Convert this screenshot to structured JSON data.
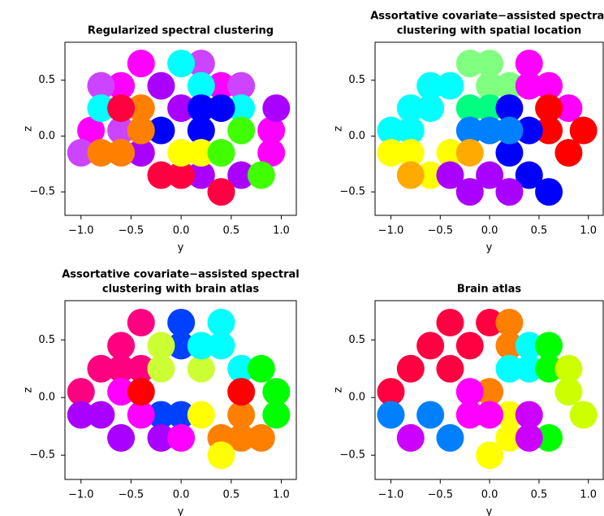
{
  "chart_data": [
    {
      "type": "scatter",
      "title": [
        "Regularized spectral clustering"
      ],
      "xlabel": "y",
      "ylabel": "z",
      "xlim": [
        -1.16,
        1.15
      ],
      "ylim": [
        -0.71,
        0.84
      ],
      "xticks": [
        {
          "value": -1,
          "label": "−1.0"
        },
        {
          "value": -0.5,
          "label": "−0.5"
        },
        {
          "value": 0,
          "label": "0.0"
        },
        0.5,
        {
          "value": 1,
          "label": "1.0"
        }
      ],
      "yticks": [
        {
          "value": -0.5,
          "label": "−0.5"
        },
        {
          "value": 0,
          "label": "0.0"
        },
        0.5
      ],
      "series": [
        {
          "color": "#ff00ff",
          "x": [
            -0.6,
            -0.4,
            0.4,
            -0.9,
            0.9,
            0.9
          ],
          "values": [
            0.45,
            0.65,
            0.45,
            0.05,
            0.05,
            -0.15
          ]
        },
        {
          "color": "#aa00ff",
          "x": [
            -0.2,
            0.0,
            -0.4,
            0.2,
            0.6,
            0.95
          ],
          "values": [
            0.45,
            0.25,
            -0.15,
            -0.35,
            -0.35,
            0.25
          ]
        },
        {
          "color": "#cc44ff",
          "x": [
            0.6,
            0.2,
            -1.0,
            -0.6,
            -0.8
          ],
          "values": [
            0.45,
            0.65,
            -0.15,
            0.05,
            0.45
          ]
        },
        {
          "color": "#00ffff",
          "x": [
            0.0,
            0.2,
            -0.8,
            0.6
          ],
          "values": [
            0.65,
            0.45,
            0.25,
            0.25
          ]
        },
        {
          "color": "#0000ff",
          "x": [
            0.2,
            0.4,
            0.2,
            -0.2
          ],
          "values": [
            0.25,
            0.25,
            0.05,
            0.05
          ]
        },
        {
          "color": "#ff8000",
          "x": [
            -0.6,
            -0.8,
            -0.4,
            -0.4
          ],
          "values": [
            -0.15,
            -0.15,
            0.25,
            0.05
          ]
        },
        {
          "color": "#ff0040",
          "x": [
            0.0,
            -0.2,
            0.4,
            -0.6
          ],
          "values": [
            -0.35,
            -0.35,
            -0.5,
            0.25
          ]
        },
        {
          "color": "#ffff00",
          "x": [
            0.0,
            0.2
          ],
          "values": [
            -0.15,
            -0.15
          ]
        },
        {
          "color": "#40ff00",
          "x": [
            0.6,
            0.4,
            0.8
          ],
          "values": [
            0.05,
            -0.15,
            -0.35
          ]
        }
      ]
    },
    {
      "type": "scatter",
      "title": [
        "Assortative covariate−assisted spectral",
        "clustering with spatial location"
      ],
      "xlabel": "y",
      "ylabel": "z",
      "xlim": [
        -1.16,
        1.15
      ],
      "ylim": [
        -0.71,
        0.84
      ],
      "xticks": [
        {
          "value": -1,
          "label": "−1.0"
        },
        {
          "value": -0.5,
          "label": "−0.5"
        },
        {
          "value": 0,
          "label": "0.0"
        },
        0.5,
        {
          "value": 1,
          "label": "1.0"
        }
      ],
      "yticks": [
        {
          "value": -0.5,
          "label": "−0.5"
        },
        {
          "value": 0,
          "label": "0.0"
        },
        0.5
      ],
      "series": [
        {
          "color": "#00ffff",
          "x": [
            -0.8,
            -0.6,
            -1.0,
            -0.8,
            -0.6,
            -0.4
          ],
          "values": [
            0.25,
            0.45,
            0.05,
            0.05,
            0.25,
            0.45
          ]
        },
        {
          "color": "#80ff80",
          "x": [
            -0.2,
            0.0,
            0.2,
            0.0
          ],
          "values": [
            0.65,
            0.65,
            0.45,
            0.45
          ]
        },
        {
          "color": "#00ff80",
          "x": [
            -0.2,
            0.0
          ],
          "values": [
            0.25,
            0.25
          ]
        },
        {
          "color": "#ff00ff",
          "x": [
            0.4,
            0.6,
            0.8,
            0.4
          ],
          "values": [
            0.65,
            0.45,
            0.25,
            0.45
          ]
        },
        {
          "color": "#ff0000",
          "x": [
            0.6,
            0.95,
            0.8,
            0.6
          ],
          "values": [
            0.05,
            0.05,
            -0.15,
            0.25
          ]
        },
        {
          "color": "#0000ff",
          "x": [
            0.4,
            0.2,
            0.4,
            0.6,
            0.2
          ],
          "values": [
            0.05,
            -0.15,
            -0.35,
            -0.5,
            0.25
          ]
        },
        {
          "color": "#0080ff",
          "x": [
            -0.2,
            0.0,
            0.2
          ],
          "values": [
            0.05,
            0.05,
            0.05
          ]
        },
        {
          "color": "#ffff00",
          "x": [
            -1.0,
            -0.8,
            -0.6,
            -0.4
          ],
          "values": [
            -0.15,
            -0.15,
            -0.35,
            -0.15
          ]
        },
        {
          "color": "#ffaa00",
          "x": [
            -0.8,
            -0.2
          ],
          "values": [
            -0.35,
            -0.15
          ]
        },
        {
          "color": "#aa00ff",
          "x": [
            -0.2,
            0.0,
            0.2,
            -0.4
          ],
          "values": [
            -0.5,
            -0.35,
            -0.5,
            -0.35
          ]
        }
      ]
    },
    {
      "type": "scatter",
      "title": [
        "Assortative covariate−assisted spectral",
        "clustering with brain atlas"
      ],
      "xlabel": "y",
      "ylabel": "z",
      "xlim": [
        -1.16,
        1.15
      ],
      "ylim": [
        -0.71,
        0.84
      ],
      "xticks": [
        {
          "value": -1,
          "label": "−1.0"
        },
        {
          "value": -0.5,
          "label": "−0.5"
        },
        {
          "value": 0,
          "label": "0.0"
        },
        0.5,
        {
          "value": 1,
          "label": "1.0"
        }
      ],
      "yticks": [
        {
          "value": -0.5,
          "label": "−0.5"
        },
        {
          "value": 0,
          "label": "0.0"
        },
        0.5
      ],
      "series": [
        {
          "color": "#ff0080",
          "x": [
            -0.6,
            -0.4,
            -0.8,
            -0.4,
            -1.0,
            -0.6
          ],
          "values": [
            0.45,
            0.65,
            0.25,
            0.25,
            0.05,
            0.25
          ]
        },
        {
          "color": "#0040ff",
          "x": [
            0.0,
            0.0,
            0.0,
            -0.2
          ],
          "values": [
            0.65,
            0.45,
            -0.15,
            -0.15
          ]
        },
        {
          "color": "#ccff33",
          "x": [
            -0.2,
            0.2,
            -0.2
          ],
          "values": [
            0.45,
            0.25,
            0.25
          ]
        },
        {
          "color": "#00ffff",
          "x": [
            0.4,
            0.4,
            0.6,
            0.2
          ],
          "values": [
            0.65,
            0.45,
            0.25,
            0.45
          ]
        },
        {
          "color": "#00ff00",
          "x": [
            0.95,
            0.8,
            0.95
          ],
          "values": [
            0.05,
            0.25,
            -0.15
          ]
        },
        {
          "color": "#ff8000",
          "x": [
            0.4,
            0.6,
            0.6,
            0.8
          ],
          "values": [
            -0.35,
            -0.15,
            -0.35,
            -0.35
          ]
        },
        {
          "color": "#ffff00",
          "x": [
            0.2,
            0.4
          ],
          "values": [
            -0.15,
            -0.5
          ]
        },
        {
          "color": "#aa00ff",
          "x": [
            -0.8,
            -1.0,
            -0.6,
            -0.2
          ],
          "values": [
            -0.15,
            -0.15,
            -0.35,
            -0.35
          ]
        },
        {
          "color": "#ff00ff",
          "x": [
            -0.4,
            -0.6,
            0.0
          ],
          "values": [
            -0.15,
            0.05,
            -0.35
          ]
        },
        {
          "color": "#ff0000",
          "x": [
            -0.4,
            0.6
          ],
          "values": [
            0.05,
            0.05
          ]
        }
      ]
    },
    {
      "type": "scatter",
      "title": [
        "Brain atlas"
      ],
      "xlabel": "y",
      "ylabel": "z",
      "xlim": [
        -1.16,
        1.15
      ],
      "ylim": [
        -0.71,
        0.84
      ],
      "xticks": [
        {
          "value": -1,
          "label": "−1.0"
        },
        {
          "value": -0.5,
          "label": "−0.5"
        },
        {
          "value": 0,
          "label": "0.0"
        },
        0.5,
        {
          "value": 1,
          "label": "1.0"
        }
      ],
      "yticks": [
        {
          "value": -0.5,
          "label": "−0.5"
        },
        {
          "value": 0,
          "label": "0.0"
        },
        0.5
      ],
      "series": [
        {
          "color": "#ff0040",
          "x": [
            -0.6,
            -0.4,
            -0.2,
            -0.8,
            -0.4,
            -1.0,
            0.0
          ],
          "values": [
            0.45,
            0.65,
            0.45,
            0.25,
            0.25,
            0.05,
            0.65
          ]
        },
        {
          "color": "#ff8000",
          "x": [
            0.2,
            0.2,
            0.0
          ],
          "values": [
            0.65,
            0.45,
            0.05
          ]
        },
        {
          "color": "#00ffff",
          "x": [
            0.4,
            0.4,
            0.2
          ],
          "values": [
            0.45,
            0.25,
            0.25
          ]
        },
        {
          "color": "#00ff00",
          "x": [
            0.6,
            0.6,
            0.6
          ],
          "values": [
            0.45,
            0.25,
            -0.35
          ]
        },
        {
          "color": "#ccff00",
          "x": [
            0.8,
            0.95,
            0.8
          ],
          "values": [
            0.05,
            -0.15,
            0.25
          ]
        },
        {
          "color": "#ffff00",
          "x": [
            0.2,
            0.2,
            0.0
          ],
          "values": [
            -0.35,
            -0.15,
            -0.5
          ]
        },
        {
          "color": "#0080ff",
          "x": [
            -1.0,
            -0.6,
            -0.4
          ],
          "values": [
            -0.15,
            -0.15,
            -0.35
          ]
        },
        {
          "color": "#ff00ff",
          "x": [
            -0.2,
            0.0,
            -0.2
          ],
          "values": [
            -0.15,
            -0.15,
            0.05
          ]
        },
        {
          "color": "#cc00ff",
          "x": [
            0.4,
            0.4,
            -0.8
          ],
          "values": [
            -0.35,
            -0.15,
            -0.35
          ]
        }
      ]
    }
  ]
}
